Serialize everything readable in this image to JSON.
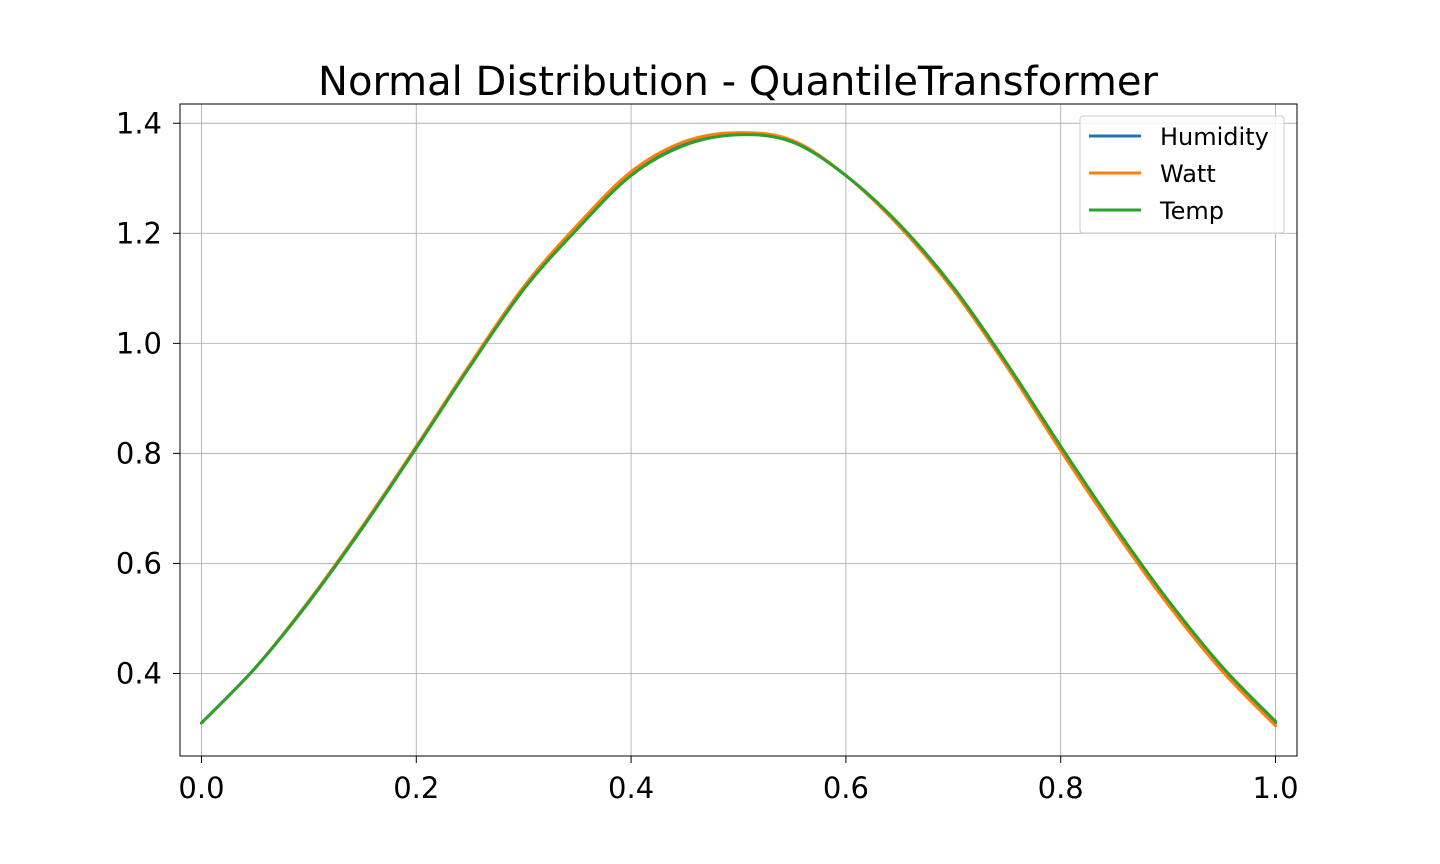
{
  "chart_data": {
    "type": "line",
    "title": "Normal Distribution - QuantileTransformer",
    "xlabel": "",
    "ylabel": "",
    "xlim": [
      -0.02,
      1.02
    ],
    "ylim": [
      0.25,
      1.435
    ],
    "xticks": [
      0.0,
      0.2,
      0.4,
      0.6,
      0.8,
      1.0
    ],
    "xtick_labels": [
      "0.0",
      "0.2",
      "0.4",
      "0.6",
      "0.8",
      "1.0"
    ],
    "yticks": [
      0.4,
      0.6,
      0.8,
      1.0,
      1.2,
      1.4
    ],
    "ytick_labels": [
      "0.4",
      "0.6",
      "0.8",
      "1.0",
      "1.2",
      "1.4"
    ],
    "grid": true,
    "legend_position": "top-right",
    "x": [
      0.0,
      0.05,
      0.1,
      0.15,
      0.2,
      0.25,
      0.3,
      0.35,
      0.4,
      0.45,
      0.5,
      0.55,
      0.6,
      0.65,
      0.7,
      0.75,
      0.8,
      0.85,
      0.9,
      0.95,
      1.0
    ],
    "series": [
      {
        "name": "Humidity",
        "color": "#1f77b4",
        "values": [
          0.31,
          0.41,
          0.53,
          0.665,
          0.81,
          0.96,
          1.1,
          1.21,
          1.31,
          1.365,
          1.382,
          1.368,
          1.305,
          1.215,
          1.1,
          0.96,
          0.81,
          0.665,
          0.53,
          0.41,
          0.31
        ]
      },
      {
        "name": "Watt",
        "color": "#ff7f0e",
        "values": [
          0.31,
          0.41,
          0.532,
          0.668,
          0.813,
          0.962,
          1.103,
          1.215,
          1.312,
          1.367,
          1.383,
          1.369,
          1.305,
          1.212,
          1.097,
          0.957,
          0.805,
          0.66,
          0.525,
          0.405,
          0.305
        ]
      },
      {
        "name": "Temp",
        "color": "#2ca02c",
        "values": [
          0.31,
          0.41,
          0.53,
          0.665,
          0.81,
          0.958,
          1.098,
          1.208,
          1.305,
          1.36,
          1.379,
          1.366,
          1.305,
          1.216,
          1.102,
          0.963,
          0.813,
          0.668,
          0.533,
          0.413,
          0.313
        ]
      }
    ]
  }
}
